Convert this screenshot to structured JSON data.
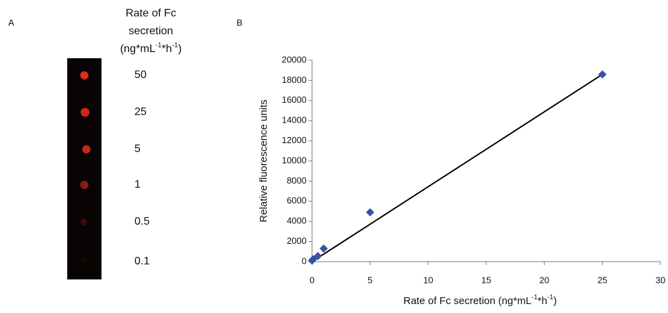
{
  "panel_a": {
    "label": "A",
    "title_lines": [
      "Rate of Fc",
      "secretion"
    ],
    "unit_parts": [
      "(ng*mL",
      "-1",
      "*h",
      "-1",
      ")"
    ],
    "rates": [
      "50",
      "25",
      "5",
      "1",
      "0.5",
      "0.1"
    ]
  },
  "chart_data": {
    "type": "scatter",
    "panel_label": "B",
    "y_label": "Relative fluorescence units",
    "x_label_parts": [
      "Rate of Fc secretion (ng*mL",
      "-1",
      "*h",
      "-1",
      ")"
    ],
    "xlim": [
      0,
      30
    ],
    "xticks": [
      0,
      5,
      10,
      15,
      20,
      25,
      30
    ],
    "ylim": [
      0,
      20000
    ],
    "yticks": [
      0,
      2000,
      4000,
      6000,
      8000,
      10000,
      12000,
      14000,
      16000,
      18000,
      20000
    ],
    "grid": false,
    "series": [
      {
        "kind": "scatter",
        "color": "#3a4fa6",
        "x": [
          0,
          0.1,
          0.5,
          1,
          5,
          25
        ],
        "values": [
          100,
          250,
          550,
          1300,
          4900,
          18600
        ]
      },
      {
        "kind": "line",
        "color": "#000000",
        "x": [
          0,
          25
        ],
        "values": [
          0,
          18600
        ]
      }
    ]
  }
}
